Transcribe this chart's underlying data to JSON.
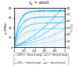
{
  "title": "$\\dot{\\varepsilon}_p$ = const",
  "xlabel": "t (%)",
  "ylabel_left": "σ (MPa)",
  "ylabel_right": "T (°C)",
  "xlim": [
    0,
    1
  ],
  "ylim_left": [
    0,
    80
  ],
  "ylim_right": [
    20,
    80
  ],
  "yticks_left": [
    0,
    20,
    40,
    60,
    80
  ],
  "yticks_right": [
    20,
    30,
    40,
    50,
    60,
    70,
    80
  ],
  "xticks": [
    0,
    0.2,
    0.4,
    0.6,
    0.8,
    1.0
  ],
  "background_color": "#ffffff",
  "plot_bg_color": "#f0f8ff",
  "colors": [
    "#aaddee",
    "#77ccee",
    "#44bbee",
    "#11aadd"
  ],
  "stress_params": [
    {
      "max": 38,
      "shape": 0.15
    },
    {
      "max": 50,
      "shape": 0.13
    },
    {
      "max": 62,
      "shape": 0.11
    },
    {
      "max": 74,
      "shape": 0.09
    }
  ],
  "temp_params": [
    {
      "base": 22,
      "rate": 8
    },
    {
      "base": 22,
      "rate": 18
    },
    {
      "base": 22,
      "rate": 30
    },
    {
      "base": 22,
      "rate": 45
    }
  ],
  "legend_entries": [
    "0.001 s⁻¹ (ε̇ = 0.001 s⁻¹)",
    "0.01 s⁻¹ (ε̇ = 0.01 s⁻¹)",
    "0.1 s⁻¹ (ε̇ = 0.1 s⁻¹)",
    "1 s⁻¹ (ε̇ = 1 s⁻¹)"
  ],
  "legend_labels": [
    "0.001 s⁻¹ (stress & temp)",
    "0.01 s⁻¹ (stress & temp)",
    "0.1 s⁻¹ (stress & temp)",
    "1 s⁻¹ (stress & temp)"
  ]
}
